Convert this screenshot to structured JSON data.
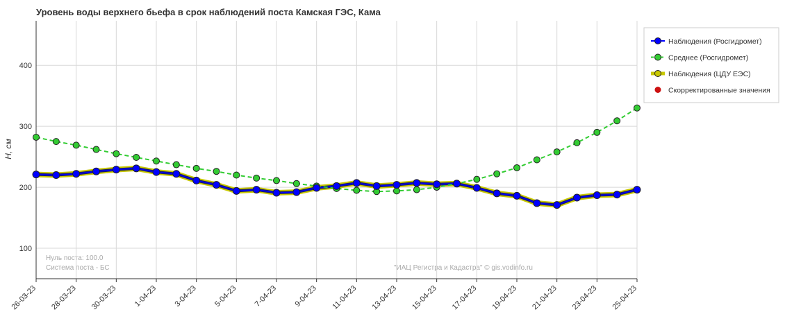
{
  "chart_data": {
    "type": "line",
    "title": "Уровень воды верхнего бьефа в срок наблюдений поста Камская ГЭС,  Кама",
    "y_label": "H, см",
    "annotations": [
      "Нуль поста: 100.0",
      "Система поста - БС"
    ],
    "credit": "\"ИАЦ Регистра и Кадастра\" © gis.vodinfo.ru",
    "categories": [
      "26-03-23",
      null,
      "28-03-23",
      null,
      "30-03-23",
      null,
      "1-04-23",
      null,
      "3-04-23",
      null,
      "5-04-23",
      null,
      "7-04-23",
      null,
      "9-04-23",
      null,
      "11-04-23",
      null,
      "13-04-23",
      null,
      "15-04-23",
      null,
      "17-04-23",
      null,
      "19-04-23",
      null,
      "21-04-23",
      null,
      "23-04-23",
      null,
      "25-04-23"
    ],
    "series": [
      {
        "name": "Наблюдения (Росгидромет)",
        "color": "#0000ff",
        "values": [
          221,
          220,
          222,
          226,
          229,
          231,
          225,
          222,
          211,
          204,
          194,
          196,
          191,
          192,
          199,
          202,
          207,
          202,
          204,
          207,
          205,
          206,
          199,
          190,
          186,
          174,
          171,
          183,
          187,
          188,
          196
        ]
      },
      {
        "name": "Среднее (Росгидромет)",
        "color": "#33cc33",
        "values": [
          282,
          275,
          269,
          262,
          255,
          249,
          243,
          237,
          231,
          226,
          220,
          215,
          211,
          206,
          202,
          198,
          195,
          193,
          194,
          196,
          200,
          206,
          213,
          222,
          232,
          245,
          258,
          273,
          290,
          309,
          330
        ]
      },
      {
        "name": "Наблюдения (ЦДУ ЕЭС)",
        "color": "#c8c800",
        "values": [
          221,
          220,
          222,
          226,
          229,
          231,
          225,
          222,
          211,
          204,
          194,
          196,
          191,
          192,
          199,
          202,
          207,
          202,
          204,
          207,
          205,
          206,
          199,
          190,
          186,
          174,
          171,
          183,
          187,
          188,
          196
        ]
      },
      {
        "name": "Скорректированные значения",
        "color": "#cc1111",
        "values": [
          null,
          null,
          null,
          null,
          null,
          null,
          null,
          null,
          null,
          null,
          null,
          null,
          null,
          null,
          null,
          null,
          null,
          null,
          null,
          null,
          null,
          null,
          null,
          null,
          null,
          null,
          null,
          null,
          null,
          null,
          null
        ]
      }
    ],
    "ylim": [
      50,
      473
    ],
    "yticks": [
      100,
      200,
      300,
      400
    ],
    "grid": true
  }
}
